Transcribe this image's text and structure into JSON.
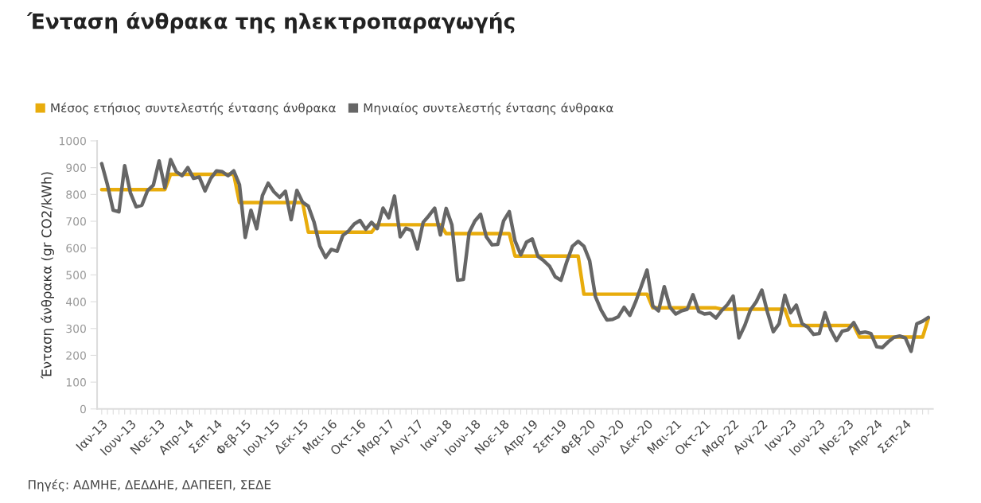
{
  "chart_data": {
    "type": "line",
    "title": "Ένταση άνθρακα της ηλεκτροπαραγωγής",
    "ylabel": "Ένταση άνθρακα (gr CO2/kWh)",
    "categories": [
      "Ιαν-13",
      null,
      null,
      null,
      null,
      "Ιουν-13",
      null,
      null,
      null,
      null,
      "Νοε-13",
      null,
      null,
      null,
      null,
      "Απρ-14",
      null,
      null,
      null,
      null,
      "Σεπ-14",
      null,
      null,
      null,
      null,
      "Φεβ-15",
      null,
      null,
      null,
      null,
      "Ιουλ-15",
      null,
      null,
      null,
      null,
      "Δεκ-15",
      null,
      null,
      null,
      null,
      "Μαι-16",
      null,
      null,
      null,
      null,
      "Οκτ-16",
      null,
      null,
      null,
      null,
      "Μαρ-17",
      null,
      null,
      null,
      null,
      "Αυγ-17",
      null,
      null,
      null,
      null,
      "Ιαν-18",
      null,
      null,
      null,
      null,
      "Ιουν-18",
      null,
      null,
      null,
      null,
      "Νοε-18",
      null,
      null,
      null,
      null,
      "Απρ-19",
      null,
      null,
      null,
      null,
      "Σεπ-19",
      null,
      null,
      null,
      null,
      "Φεβ-20",
      null,
      null,
      null,
      null,
      "Ιουλ-20",
      null,
      null,
      null,
      null,
      "Δεκ-20",
      null,
      null,
      null,
      null,
      "Μαι-21",
      null,
      null,
      null,
      null,
      "Οκτ-21",
      null,
      null,
      null,
      null,
      "Μαρ-22",
      null,
      null,
      null,
      null,
      "Αυγ-22",
      null,
      null,
      null,
      null,
      "Ιαν-23",
      null,
      null,
      null,
      null,
      "Ιουν-23",
      null,
      null,
      null,
      null,
      "Νοε-23",
      null,
      null,
      null,
      null,
      "Απρ-24",
      null,
      null,
      null,
      null,
      "Σεπ-24",
      null,
      null,
      null,
      null
    ],
    "series": [
      {
        "name": "Μέσος ετήσιος συντελεστής έντασης άνθρακα",
        "color": "#e8ac0c",
        "values": [
          818,
          818,
          818,
          818,
          818,
          818,
          818,
          818,
          818,
          818,
          818,
          818,
          875,
          875,
          875,
          875,
          875,
          875,
          875,
          875,
          875,
          875,
          875,
          875,
          770,
          770,
          770,
          770,
          770,
          770,
          770,
          770,
          770,
          770,
          770,
          770,
          659,
          659,
          659,
          659,
          659,
          659,
          659,
          659,
          659,
          659,
          659,
          659,
          687,
          687,
          687,
          687,
          687,
          687,
          687,
          687,
          687,
          687,
          687,
          687,
          654,
          654,
          654,
          654,
          654,
          654,
          654,
          654,
          654,
          654,
          654,
          654,
          570,
          570,
          570,
          570,
          570,
          570,
          570,
          570,
          570,
          570,
          570,
          570,
          428,
          428,
          428,
          428,
          428,
          428,
          428,
          428,
          428,
          428,
          428,
          428,
          377,
          377,
          377,
          377,
          377,
          377,
          377,
          377,
          377,
          377,
          377,
          377,
          372,
          372,
          372,
          372,
          372,
          372,
          372,
          372,
          372,
          372,
          372,
          372,
          311,
          311,
          311,
          311,
          311,
          311,
          311,
          311,
          311,
          311,
          311,
          311,
          268,
          268,
          268,
          268,
          268,
          268,
          268,
          268,
          268,
          268,
          268,
          268,
          337
        ]
      },
      {
        "name": "Μηνιαίος συντελεστής έντασης άνθρακα",
        "color": "#666666",
        "values": [
          915,
          836,
          741,
          735,
          907,
          806,
          754,
          760,
          815,
          835,
          925,
          825,
          930,
          885,
          870,
          900,
          860,
          865,
          813,
          860,
          888,
          885,
          870,
          888,
          836,
          640,
          741,
          672,
          796,
          842,
          810,
          789,
          812,
          706,
          815,
          771,
          756,
          696,
          607,
          565,
          595,
          588,
          647,
          664,
          690,
          703,
          670,
          696,
          673,
          749,
          713,
          794,
          642,
          674,
          665,
          597,
          696,
          721,
          749,
          649,
          748,
          687,
          480,
          483,
          657,
          701,
          726,
          642,
          612,
          614,
          701,
          736,
          627,
          575,
          622,
          634,
          569,
          553,
          533,
          493,
          480,
          548,
          607,
          625,
          607,
          553,
          419,
          369,
          332,
          334,
          344,
          379,
          349,
          399,
          458,
          518,
          384,
          366,
          456,
          379,
          354,
          366,
          372,
          426,
          364,
          354,
          357,
          339,
          367,
          389,
          421,
          265,
          310,
          369,
          399,
          443,
          359,
          288,
          318,
          424,
          359,
          387,
          318,
          305,
          278,
          281,
          359,
          295,
          255,
          290,
          295,
          322,
          283,
          287,
          281,
          232,
          229,
          250,
          267,
          272,
          265,
          215,
          318,
          327,
          341
        ]
      }
    ],
    "ylim": [
      0,
      1000
    ],
    "yticks": [
      0,
      100,
      200,
      300,
      400,
      500,
      600,
      700,
      800,
      900,
      1000
    ],
    "grid": false,
    "legend": "top left",
    "marker": "none",
    "line_style": "solid",
    "annotations": [
      "Πηγές: ΑΔΜΗΕ, ΔΕΔΔΗΕ, ΔΑΠΕΕΠ, ΣΕΔΕ"
    ]
  }
}
